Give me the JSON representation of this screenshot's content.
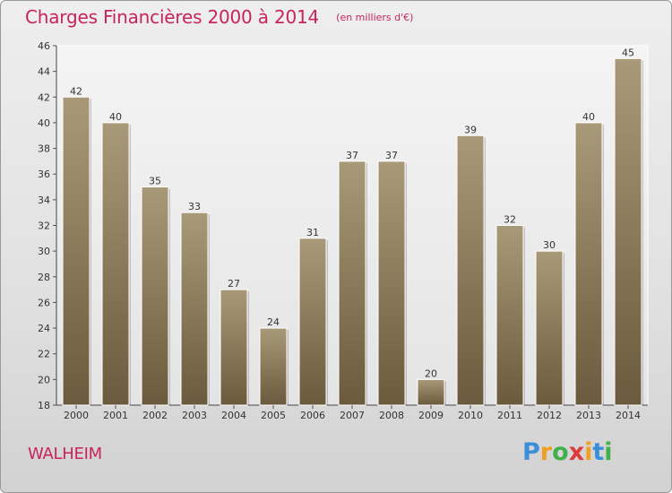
{
  "title": "Charges Financières 2000 à 2014",
  "subtitle": "(en milliers d'€)",
  "commune": "WALHEIM",
  "logo": {
    "letters": [
      "P",
      "r",
      "o",
      "x",
      "i",
      "t",
      "i"
    ],
    "colors": [
      "#3a8fd8",
      "#f0a020",
      "#3fb04a",
      "#e03a3a",
      "#f0a020",
      "#3a8fd8",
      "#3fb04a"
    ]
  },
  "colors": {
    "bar_top": "#a89a78",
    "bar_bottom": "#6b5a3d",
    "title": "#c8245a"
  },
  "chart_data": {
    "type": "bar",
    "categories": [
      "2000",
      "2001",
      "2002",
      "2003",
      "2004",
      "2005",
      "2006",
      "2007",
      "2008",
      "2009",
      "2010",
      "2011",
      "2012",
      "2013",
      "2014"
    ],
    "values": [
      42,
      40,
      35,
      33,
      27,
      24,
      31,
      37,
      37,
      20,
      39,
      32,
      30,
      40,
      45
    ],
    "ylim": [
      18,
      46
    ],
    "yticks": [
      "18",
      "20",
      "22",
      "24",
      "26",
      "28",
      "30",
      "32",
      "34",
      "36",
      "38",
      "40",
      "42",
      "44",
      "46"
    ],
    "grid": false,
    "title": "Charges Financières 2000 à 2014",
    "xlabel": "",
    "ylabel": ""
  }
}
